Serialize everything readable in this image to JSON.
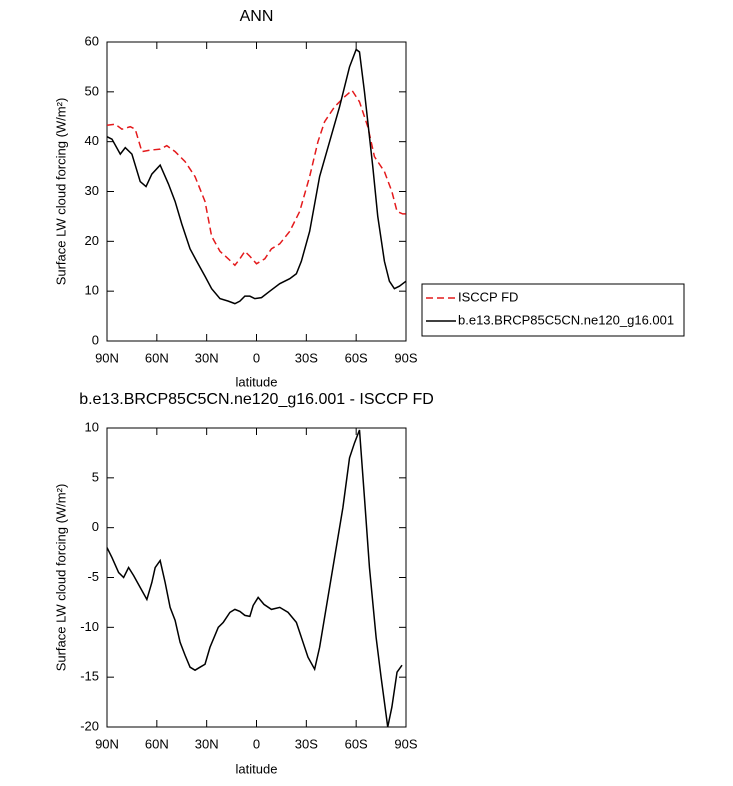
{
  "chart_data": [
    {
      "type": "line",
      "title": "ANN",
      "y_label": "Surface LW cloud forcing (W/m²)",
      "x_label": "latitude",
      "xlim": [
        90,
        -90
      ],
      "ylim": [
        0,
        60
      ],
      "xticks": [
        {
          "value": 90,
          "label": "90N"
        },
        {
          "value": 60,
          "label": "60N"
        },
        {
          "value": 30,
          "label": "30N"
        },
        0,
        {
          "value": -30,
          "label": "30S"
        },
        {
          "value": -60,
          "label": "60S"
        },
        {
          "value": -90,
          "label": "90S"
        }
      ],
      "yticks": [
        0,
        10,
        20,
        30,
        40,
        50,
        60
      ],
      "legend": "right",
      "series": [
        {
          "name": "ISCCP FD",
          "color": "#e41a1c",
          "line_style": "dashed",
          "x": [
            90,
            85,
            81,
            76,
            73,
            69,
            64,
            58,
            54,
            49,
            43,
            37,
            31,
            27,
            22,
            17,
            13,
            10,
            7,
            4,
            0,
            -5,
            -9,
            -14,
            -20,
            -26,
            -32,
            -37,
            -41,
            -47,
            -53,
            -57.5,
            -62,
            -67,
            -71,
            -77,
            -81.5,
            -84.6,
            -88,
            -90
          ],
          "values": [
            43.3,
            43.5,
            42.5,
            43,
            42.5,
            38,
            38.3,
            38.5,
            39.2,
            38,
            36,
            33,
            28,
            21,
            18,
            16.5,
            15.2,
            16.5,
            18,
            17,
            15.5,
            16.5,
            18.5,
            19.5,
            22,
            26,
            33,
            40,
            44,
            47,
            49,
            50.3,
            48,
            43,
            37,
            34,
            30,
            26,
            25.5,
            25.5
          ]
        },
        {
          "name": "b.e13.BRCP85C5CN.ne120_g16.001",
          "color": "#000000",
          "line_style": "solid",
          "x": [
            90,
            87,
            82,
            79,
            75,
            70,
            66.5,
            63,
            58,
            53,
            49,
            45,
            40,
            36,
            31,
            27,
            22,
            17,
            13,
            10,
            7,
            4,
            1,
            -3,
            -8,
            -14,
            -20,
            -24,
            -27,
            -32,
            -38,
            -44,
            -50,
            -56,
            -60,
            -62,
            -65,
            -70,
            -73,
            -77,
            -80,
            -83,
            -86,
            -90
          ],
          "values": [
            41,
            40.5,
            37.5,
            38.8,
            37.5,
            32,
            31,
            33.5,
            35.3,
            31.5,
            28,
            23.5,
            18.5,
            16,
            13,
            10.5,
            8.5,
            8,
            7.5,
            8,
            9,
            9,
            8.5,
            8.7,
            10,
            11.5,
            12.5,
            13.5,
            16,
            22,
            33,
            40,
            47,
            55,
            58.5,
            58,
            50,
            35,
            25,
            16,
            12,
            10.5,
            11,
            12
          ]
        }
      ]
    },
    {
      "type": "line",
      "title": "b.e13.BRCP85C5CN.ne120_g16.001 - ISCCP FD",
      "y_label": "Surface LW cloud forcing (W/m²)",
      "x_label": "latitude",
      "xlim": [
        90,
        -90
      ],
      "ylim": [
        -20,
        10
      ],
      "xticks": [
        {
          "value": 90,
          "label": "90N"
        },
        {
          "value": 60,
          "label": "60N"
        },
        {
          "value": 30,
          "label": "30N"
        },
        0,
        {
          "value": -30,
          "label": "30S"
        },
        {
          "value": -60,
          "label": "60S"
        },
        {
          "value": -90,
          "label": "90S"
        }
      ],
      "yticks": [
        -20,
        -15,
        -10,
        -5,
        0,
        5,
        10
      ],
      "series": [
        {
          "color": "#000000",
          "line_style": "solid",
          "x": [
            90,
            87,
            83,
            80,
            77,
            74,
            70,
            66,
            63,
            61,
            58,
            55,
            52,
            49,
            46,
            43,
            40,
            37,
            34,
            31,
            28,
            23,
            20,
            16,
            13,
            10,
            7,
            4,
            2,
            -1,
            -4.5,
            -9,
            -14,
            -19,
            -24,
            -27,
            -31,
            -35,
            -38,
            -43,
            -47,
            -52,
            -56,
            -59,
            -62,
            -65,
            -68,
            -72,
            -75,
            -77,
            -79,
            -81.5,
            -84.6,
            -87.6
          ],
          "values": [
            -2,
            -3,
            -4.5,
            -5,
            -4,
            -4.8,
            -6,
            -7.2,
            -5.5,
            -4,
            -3.3,
            -5.5,
            -8,
            -9.3,
            -11.5,
            -12.8,
            -14,
            -14.3,
            -14,
            -13.7,
            -12,
            -10,
            -9.5,
            -8.5,
            -8.2,
            -8.4,
            -8.8,
            -8.9,
            -7.8,
            -7,
            -7.7,
            -8.2,
            -8,
            -8.5,
            -9.5,
            -11,
            -13,
            -14.2,
            -12,
            -7,
            -3,
            2,
            7,
            8.5,
            9.8,
            3,
            -4,
            -11,
            -15,
            -17.5,
            -20,
            -18,
            -14.5,
            -13.8
          ]
        }
      ]
    }
  ]
}
